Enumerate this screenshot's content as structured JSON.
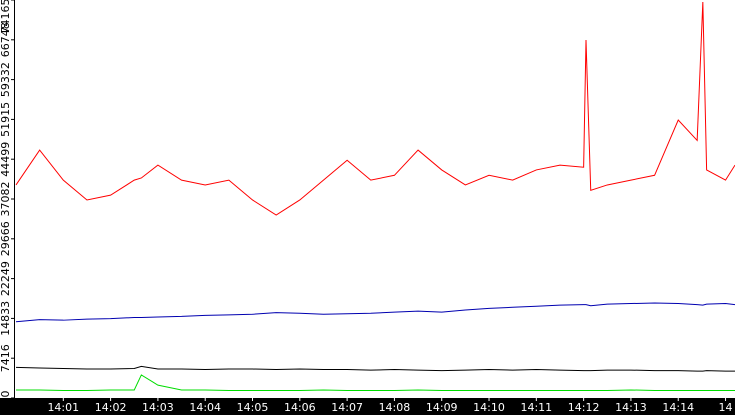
{
  "chart_data": {
    "type": "line",
    "x": [
      840,
      840.5,
      841,
      841.5,
      842,
      842.5,
      842.65,
      843,
      843.5,
      844,
      844.5,
      845,
      845.5,
      846,
      846.5,
      847,
      847.5,
      848,
      848.5,
      849,
      849.5,
      850,
      850.5,
      851,
      851.5,
      852,
      852.05,
      852.15,
      852.5,
      853,
      853.5,
      854,
      854.4,
      854.52,
      854.6,
      855,
      855.2
    ],
    "series": [
      {
        "color": "#ff0000",
        "values": [
          39700,
          46200,
          40600,
          36900,
          37800,
          40600,
          41000,
          43400,
          40600,
          39700,
          40600,
          36900,
          34100,
          36900,
          40600,
          44300,
          40600,
          41500,
          46200,
          42500,
          39700,
          41500,
          40600,
          42500,
          43400,
          43000,
          66700,
          38700,
          39700,
          40600,
          41500,
          51800,
          48000,
          73800,
          42500,
          40600,
          43400
        ]
      },
      {
        "color": "#0000b0",
        "values": [
          14200,
          14600,
          14500,
          14700,
          14800,
          15000,
          15000,
          15100,
          15200,
          15400,
          15500,
          15600,
          15900,
          15800,
          15600,
          15700,
          15800,
          16000,
          16200,
          16000,
          16400,
          16700,
          16900,
          17100,
          17300,
          17400,
          17400,
          17200,
          17500,
          17600,
          17700,
          17600,
          17400,
          17300,
          17500,
          17600,
          17400
        ]
      },
      {
        "color": "#000000",
        "values": [
          5700,
          5600,
          5500,
          5400,
          5400,
          5500,
          5900,
          5400,
          5400,
          5300,
          5400,
          5400,
          5300,
          5400,
          5300,
          5300,
          5200,
          5300,
          5200,
          5100,
          5200,
          5300,
          5200,
          5300,
          5200,
          5100,
          5100,
          5100,
          5200,
          5200,
          5100,
          5100,
          5000,
          5000,
          5100,
          5000,
          5000
        ]
      },
      {
        "color": "#00dd00",
        "values": [
          1500,
          1500,
          1400,
          1400,
          1500,
          1500,
          4300,
          2400,
          1500,
          1500,
          1400,
          1400,
          1400,
          1400,
          1500,
          1400,
          1400,
          1400,
          1500,
          1400,
          1400,
          1400,
          1400,
          1400,
          1400,
          1400,
          1400,
          1400,
          1400,
          1500,
          1400,
          1400,
          1400,
          1400,
          1400,
          1400,
          1400
        ]
      }
    ],
    "xlim": [
      840,
      855.2
    ],
    "xticks": [
      {
        "value": 841,
        "label": "14:01"
      },
      {
        "value": 842,
        "label": "14:02"
      },
      {
        "value": 843,
        "label": "14:03"
      },
      {
        "value": 844,
        "label": "14:04"
      },
      {
        "value": 845,
        "label": "14:05"
      },
      {
        "value": 846,
        "label": "14:06"
      },
      {
        "value": 847,
        "label": "14:07"
      },
      {
        "value": 848,
        "label": "14:08"
      },
      {
        "value": 849,
        "label": "14:09"
      },
      {
        "value": 850,
        "label": "14:10"
      },
      {
        "value": 851,
        "label": "14:11"
      },
      {
        "value": 852,
        "label": "14:12"
      },
      {
        "value": 853,
        "label": "14:13"
      },
      {
        "value": 854,
        "label": "14:14"
      },
      {
        "value": 855,
        "label": "14"
      }
    ],
    "ylim": [
      0,
      74165
    ],
    "yticks": [
      0,
      7416,
      14833,
      22249,
      29666,
      37082,
      44499,
      51915,
      59332,
      66748,
      74165
    ]
  }
}
